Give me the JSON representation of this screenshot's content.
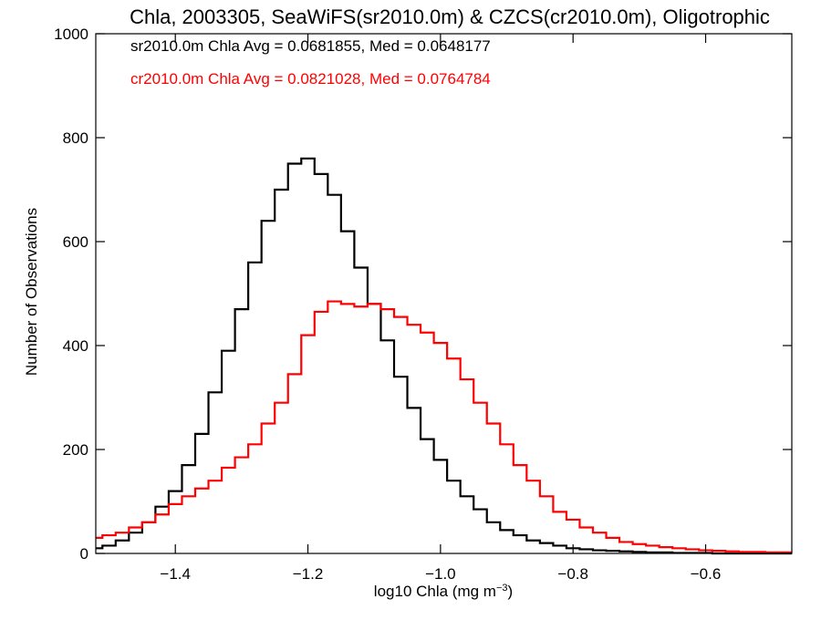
{
  "chart_data": {
    "type": "histogram",
    "title": "Chla, 2003305, SeaWiFS(sr2010.0m) & CZCS(cr2010.0m), Oligotrophic",
    "xlabel_prefix": "log10 Chla (mg m",
    "xlabel_sup": "−3",
    "xlabel_suffix": ")",
    "ylabel": "Number of Observations",
    "xlim": [
      -1.52,
      -0.47
    ],
    "ylim": [
      0,
      1000
    ],
    "x_ticks": [
      {
        "v": -1.4,
        "label": "−1.4"
      },
      {
        "v": -1.2,
        "label": "−1.2"
      },
      {
        "v": -1.0,
        "label": "−1.0"
      },
      {
        "v": -0.8,
        "label": "−0.8"
      },
      {
        "v": -0.6,
        "label": "−0.6"
      }
    ],
    "y_ticks": [
      {
        "v": 0,
        "label": "0"
      },
      {
        "v": 200,
        "label": "200"
      },
      {
        "v": 400,
        "label": "400"
      },
      {
        "v": 600,
        "label": "600"
      },
      {
        "v": 800,
        "label": "800"
      },
      {
        "v": 1000,
        "label": "1000"
      }
    ],
    "annotations": [
      {
        "text": "sr2010.0m Chla Avg = 0.0681855, Med = 0.0648177",
        "color": "#000000"
      },
      {
        "text": "cr2010.0m Chla Avg = 0.0821028, Med = 0.0764784",
        "color": "#ff0000"
      }
    ],
    "series": [
      {
        "color": "#000000",
        "x": [
          -1.52,
          -1.5,
          -1.48,
          -1.46,
          -1.44,
          -1.42,
          -1.4,
          -1.38,
          -1.36,
          -1.34,
          -1.32,
          -1.3,
          -1.28,
          -1.26,
          -1.24,
          -1.22,
          -1.2,
          -1.18,
          -1.16,
          -1.14,
          -1.12,
          -1.1,
          -1.08,
          -1.06,
          -1.04,
          -1.02,
          -1.0,
          -0.98,
          -0.96,
          -0.94,
          -0.92,
          -0.9,
          -0.88,
          -0.86,
          -0.84,
          -0.82,
          -0.8,
          -0.78,
          -0.76,
          -0.74,
          -0.72,
          -0.7,
          -0.68,
          -0.66,
          -0.64,
          -0.62,
          -0.6,
          -0.58,
          -0.56,
          -0.54,
          -0.52,
          -0.5,
          -0.48
        ],
        "values": [
          10,
          15,
          25,
          40,
          60,
          90,
          120,
          170,
          230,
          310,
          390,
          470,
          560,
          640,
          700,
          750,
          760,
          730,
          690,
          620,
          550,
          480,
          410,
          340,
          280,
          220,
          180,
          140,
          110,
          85,
          60,
          45,
          35,
          25,
          20,
          15,
          10,
          8,
          6,
          5,
          4,
          3,
          2,
          2,
          1,
          1,
          1,
          0,
          0,
          0,
          0,
          0,
          0
        ]
      },
      {
        "color": "#ff0000",
        "x": [
          -1.52,
          -1.5,
          -1.48,
          -1.46,
          -1.44,
          -1.42,
          -1.4,
          -1.38,
          -1.36,
          -1.34,
          -1.32,
          -1.3,
          -1.28,
          -1.26,
          -1.24,
          -1.22,
          -1.2,
          -1.18,
          -1.16,
          -1.14,
          -1.12,
          -1.1,
          -1.08,
          -1.06,
          -1.04,
          -1.02,
          -1.0,
          -0.98,
          -0.96,
          -0.94,
          -0.92,
          -0.9,
          -0.88,
          -0.86,
          -0.84,
          -0.82,
          -0.8,
          -0.78,
          -0.76,
          -0.74,
          -0.72,
          -0.7,
          -0.68,
          -0.66,
          -0.64,
          -0.62,
          -0.6,
          -0.58,
          -0.56,
          -0.54,
          -0.52,
          -0.5,
          -0.48
        ],
        "values": [
          30,
          35,
          40,
          50,
          60,
          75,
          95,
          110,
          125,
          140,
          165,
          185,
          210,
          250,
          290,
          345,
          420,
          465,
          485,
          480,
          475,
          480,
          470,
          455,
          440,
          425,
          405,
          375,
          335,
          290,
          250,
          210,
          170,
          140,
          110,
          80,
          65,
          50,
          40,
          30,
          22,
          18,
          15,
          12,
          10,
          8,
          6,
          5,
          4,
          3,
          3,
          2,
          2
        ]
      }
    ]
  }
}
